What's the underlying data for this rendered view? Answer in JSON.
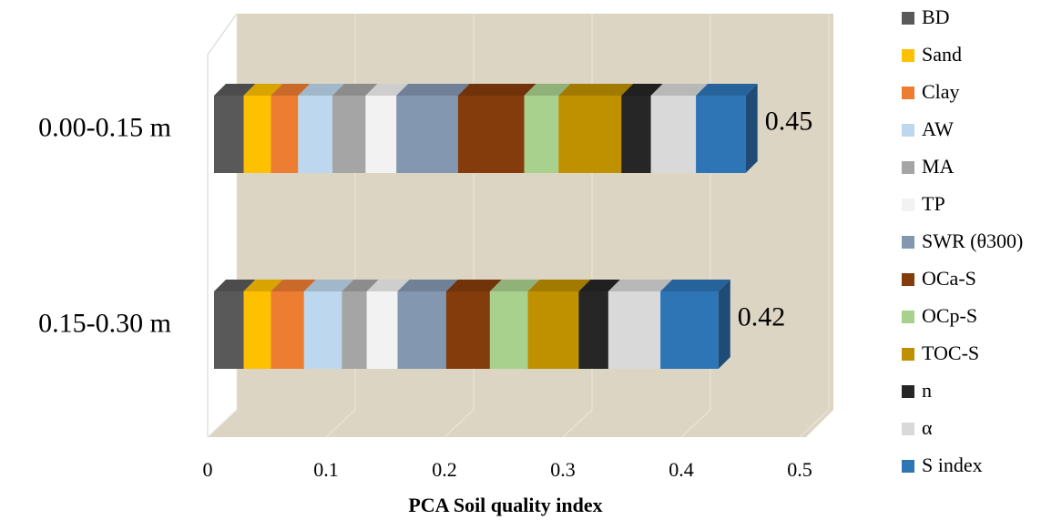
{
  "chart_data": {
    "type": "bar",
    "orientation": "horizontal",
    "stacked": true,
    "x_label": "PCA Soil quality index",
    "categories": [
      "0.00-0.15 m",
      "0.15-0.30 m"
    ],
    "series": [
      {
        "name": "BD",
        "color": "#595959",
        "values": [
          0.025,
          0.025
        ]
      },
      {
        "name": "Sand",
        "color": "#ffc000",
        "values": [
          0.023,
          0.023
        ]
      },
      {
        "name": "Clay",
        "color": "#ed7d31",
        "values": [
          0.023,
          0.028
        ]
      },
      {
        "name": "AW",
        "color": "#bdd7ee",
        "values": [
          0.029,
          0.032
        ]
      },
      {
        "name": "MA",
        "color": "#a5a5a5",
        "values": [
          0.028,
          0.021
        ]
      },
      {
        "name": "TP",
        "color": "#f2f2f2",
        "values": [
          0.026,
          0.026
        ]
      },
      {
        "name": "SWR (θ300)",
        "color": "#8497b0",
        "values": [
          0.052,
          0.041
        ]
      },
      {
        "name": "OCa-S",
        "color": "#843c0c",
        "values": [
          0.056,
          0.037
        ]
      },
      {
        "name": "OCp-S",
        "color": "#a9d18e",
        "values": [
          0.029,
          0.032
        ]
      },
      {
        "name": "TOC-S",
        "color": "#bf9000",
        "values": [
          0.053,
          0.043
        ]
      },
      {
        "name": "n",
        "color": "#262626",
        "values": [
          0.025,
          0.025
        ]
      },
      {
        "name": "α",
        "color": "#d9d9d9",
        "values": [
          0.038,
          0.044
        ]
      },
      {
        "name": "S index",
        "color": "#2e75b6",
        "values": [
          0.042,
          0.049
        ]
      }
    ],
    "totals": [
      0.45,
      0.42
    ],
    "xlim": [
      0,
      0.5
    ],
    "xticks": [
      0,
      0.1,
      0.2,
      0.3,
      0.4,
      0.5
    ],
    "grid": true,
    "legend": "right"
  }
}
